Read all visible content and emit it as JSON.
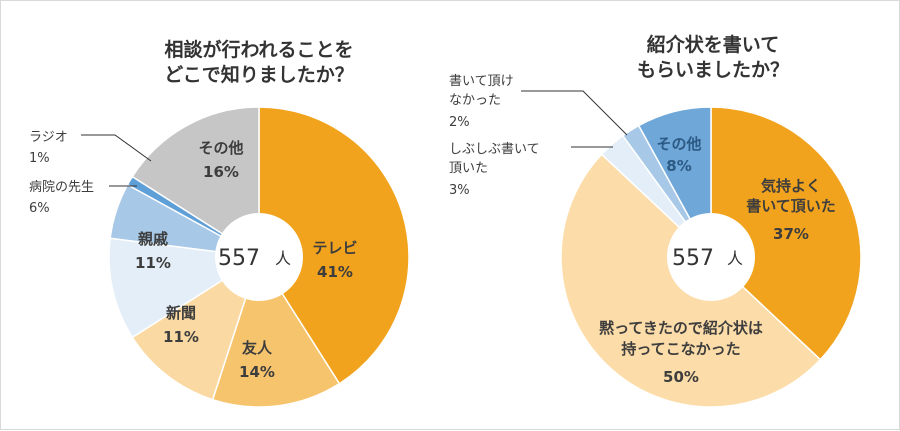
{
  "chart_data": [
    {
      "type": "pie",
      "title_lines": [
        "相談が行われることを",
        "どこで知りましたか？"
      ],
      "total": "557",
      "total_unit": "人",
      "slices": [
        {
          "label": "テレビ",
          "value": 41,
          "pct": "41%",
          "color": "#f2a31d"
        },
        {
          "label": "友人",
          "value": 14,
          "pct": "14%",
          "color": "#f7c46e"
        },
        {
          "label": "新聞",
          "value": 11,
          "pct": "11%",
          "color": "#fad9a3"
        },
        {
          "label": "親戚",
          "value": 11,
          "pct": "11%",
          "color": "#e3eef8"
        },
        {
          "label": "病院の先生",
          "value": 6,
          "pct": "6%",
          "color": "#a7c8e7"
        },
        {
          "label": "ラジオ",
          "value": 1,
          "pct": "1%",
          "color": "#5f9fd7"
        },
        {
          "label": "その他",
          "value": 16,
          "pct": "16%",
          "color": "#c6c6c6"
        }
      ]
    },
    {
      "type": "pie",
      "title_lines": [
        "紹介状を書いて",
        "もらいましたか？"
      ],
      "total": "557",
      "total_unit": "人",
      "slices": [
        {
          "label_lines": [
            "気持よく",
            "書いて頂いた"
          ],
          "value": 37,
          "pct": "37%",
          "color": "#f2a31d"
        },
        {
          "label_lines": [
            "黙ってきたので紹介状は",
            "持ってこなかった"
          ],
          "value": 50,
          "pct": "50%",
          "color": "#fcdca8"
        },
        {
          "label_lines": [
            "しぶしぶ書いて",
            "頂いた"
          ],
          "value": 3,
          "pct": "3%",
          "color": "#e3eef8"
        },
        {
          "label_lines": [
            "書いて頂け",
            "なかった"
          ],
          "value": 2,
          "pct": "2%",
          "color": "#a7c8e7"
        },
        {
          "label_lines": [
            "その他"
          ],
          "value": 8,
          "pct": "8%",
          "color": "#6ea7d8"
        }
      ]
    }
  ]
}
